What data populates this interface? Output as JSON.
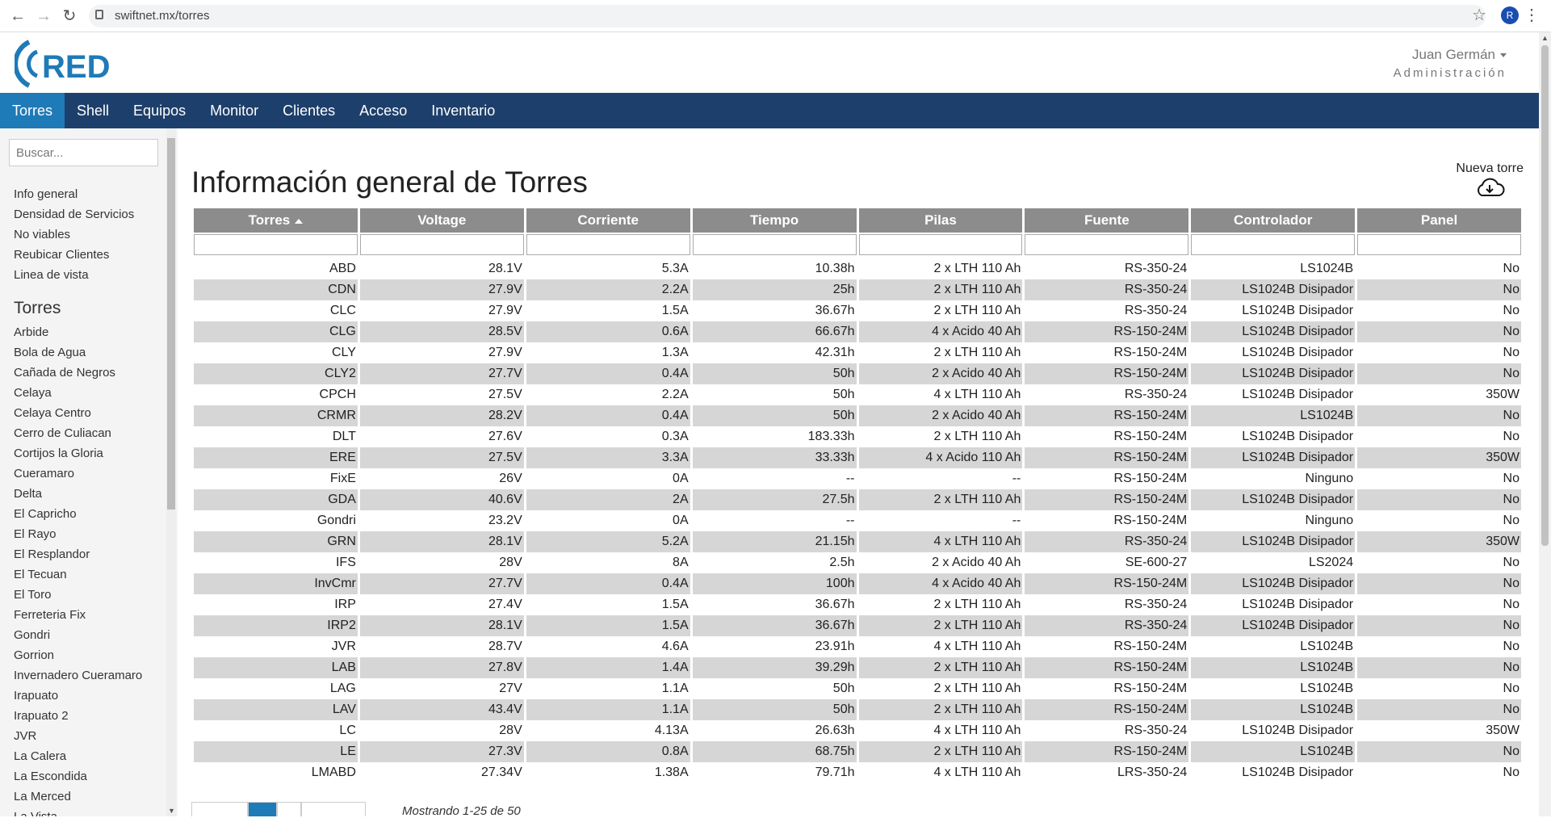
{
  "browser": {
    "url": "swiftnet.mx/torres",
    "profile_initial": "R"
  },
  "header": {
    "user_name": "Juan Germán",
    "role": "Administración"
  },
  "nav": {
    "tabs": [
      "Torres",
      "Shell",
      "Equipos",
      "Monitor",
      "Clientes",
      "Acceso",
      "Inventario"
    ]
  },
  "sidebar": {
    "search_placeholder": "Buscar...",
    "links": [
      "Info general",
      "Densidad de Servicios",
      "No viables",
      "Reubicar Clientes",
      "Linea de vista"
    ],
    "section_title": "Torres",
    "towers": [
      "Arbide",
      "Bola de Agua",
      "Cañada de Negros",
      "Celaya",
      "Celaya Centro",
      "Cerro de Culiacan",
      "Cortijos la Gloria",
      "Cueramaro",
      "Delta",
      "El Capricho",
      "El Rayo",
      "El Resplandor",
      "El Tecuan",
      "El Toro",
      "Ferreteria Fix",
      "Gondri",
      "Gorrion",
      "Invernadero Cueramaro",
      "Irapuato",
      "Irapuato 2",
      "JVR",
      "La Calera",
      "La Escondida",
      "La Merced",
      "La Vista"
    ]
  },
  "main": {
    "title": "Información general de Torres",
    "new_tower_label": "Nueva torre",
    "columns": [
      "Torres",
      "Voltage",
      "Corriente",
      "Tiempo",
      "Pilas",
      "Fuente",
      "Controlador",
      "Panel"
    ],
    "rows": [
      [
        "ABD",
        "28.1V",
        "5.3A",
        "10.38h",
        "2 x LTH 110 Ah",
        "RS-350-24",
        "LS1024B",
        "No"
      ],
      [
        "CDN",
        "27.9V",
        "2.2A",
        "25h",
        "2 x LTH 110 Ah",
        "RS-350-24",
        "LS1024B Disipador",
        "No"
      ],
      [
        "CLC",
        "27.9V",
        "1.5A",
        "36.67h",
        "2 x LTH 110 Ah",
        "RS-350-24",
        "LS1024B Disipador",
        "No"
      ],
      [
        "CLG",
        "28.5V",
        "0.6A",
        "66.67h",
        "4 x Acido 40 Ah",
        "RS-150-24M",
        "LS1024B Disipador",
        "No"
      ],
      [
        "CLY",
        "27.9V",
        "1.3A",
        "42.31h",
        "2 x LTH 110 Ah",
        "RS-150-24M",
        "LS1024B Disipador",
        "No"
      ],
      [
        "CLY2",
        "27.7V",
        "0.4A",
        "50h",
        "2 x Acido 40 Ah",
        "RS-150-24M",
        "LS1024B Disipador",
        "No"
      ],
      [
        "CPCH",
        "27.5V",
        "2.2A",
        "50h",
        "4 x LTH 110 Ah",
        "RS-350-24",
        "LS1024B Disipador",
        "350W"
      ],
      [
        "CRMR",
        "28.2V",
        "0.4A",
        "50h",
        "2 x Acido 40 Ah",
        "RS-150-24M",
        "LS1024B",
        "No"
      ],
      [
        "DLT",
        "27.6V",
        "0.3A",
        "183.33h",
        "2 x LTH 110 Ah",
        "RS-150-24M",
        "LS1024B Disipador",
        "No"
      ],
      [
        "ERE",
        "27.5V",
        "3.3A",
        "33.33h",
        "4 x Acido 110 Ah",
        "RS-150-24M",
        "LS1024B Disipador",
        "350W"
      ],
      [
        "FixE",
        "26V",
        "0A",
        "--",
        "--",
        "RS-150-24M",
        "Ninguno",
        "No"
      ],
      [
        "GDA",
        "40.6V",
        "2A",
        "27.5h",
        "2 x LTH 110 Ah",
        "RS-150-24M",
        "LS1024B Disipador",
        "No"
      ],
      [
        "Gondri",
        "23.2V",
        "0A",
        "--",
        "--",
        "RS-150-24M",
        "Ninguno",
        "No"
      ],
      [
        "GRN",
        "28.1V",
        "5.2A",
        "21.15h",
        "4 x LTH 110 Ah",
        "RS-350-24",
        "LS1024B Disipador",
        "350W"
      ],
      [
        "IFS",
        "28V",
        "8A",
        "2.5h",
        "2 x Acido 40 Ah",
        "SE-600-27",
        "LS2024",
        "No"
      ],
      [
        "InvCmr",
        "27.7V",
        "0.4A",
        "100h",
        "4 x Acido 40 Ah",
        "RS-150-24M",
        "LS1024B Disipador",
        "No"
      ],
      [
        "IRP",
        "27.4V",
        "1.5A",
        "36.67h",
        "2 x LTH 110 Ah",
        "RS-350-24",
        "LS1024B Disipador",
        "No"
      ],
      [
        "IRP2",
        "28.1V",
        "1.5A",
        "36.67h",
        "2 x LTH 110 Ah",
        "RS-350-24",
        "LS1024B Disipador",
        "No"
      ],
      [
        "JVR",
        "28.7V",
        "4.6A",
        "23.91h",
        "4 x LTH 110 Ah",
        "RS-150-24M",
        "LS1024B",
        "No"
      ],
      [
        "LAB",
        "27.8V",
        "1.4A",
        "39.29h",
        "2 x LTH 110 Ah",
        "RS-150-24M",
        "LS1024B",
        "No"
      ],
      [
        "LAG",
        "27V",
        "1.1A",
        "50h",
        "2 x LTH 110 Ah",
        "RS-150-24M",
        "LS1024B",
        "No"
      ],
      [
        "LAV",
        "43.4V",
        "1.1A",
        "50h",
        "2 x LTH 110 Ah",
        "RS-150-24M",
        "LS1024B",
        "No"
      ],
      [
        "LC",
        "28V",
        "4.13A",
        "26.63h",
        "4 x LTH 110 Ah",
        "RS-350-24",
        "LS1024B Disipador",
        "350W"
      ],
      [
        "LE",
        "27.3V",
        "0.8A",
        "68.75h",
        "2 x LTH 110 Ah",
        "RS-150-24M",
        "LS1024B",
        "No"
      ],
      [
        "LMABD",
        "27.34V",
        "1.38A",
        "79.71h",
        "4 x LTH 110 Ah",
        "LRS-350-24",
        "LS1024B Disipador",
        "No"
      ]
    ],
    "pagination_text": "Mostrando 1-25 de 50"
  },
  "colors": {
    "nav_bg": "#1d3f6b",
    "nav_active": "#1f7ab8",
    "logo_blue": "#1f7ab8",
    "table_header": "#8c8c8c",
    "row_alt": "#d6d6d6"
  }
}
